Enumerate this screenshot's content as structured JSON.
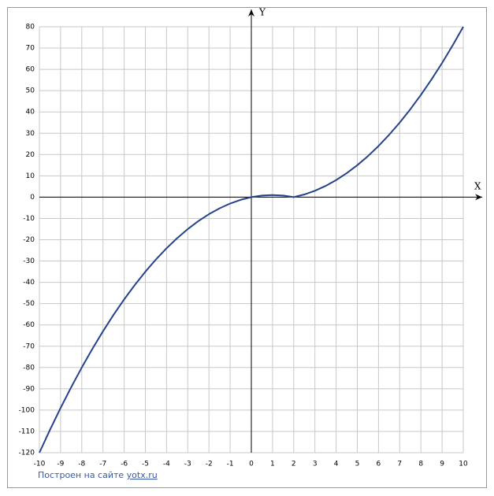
{
  "chart_data": {
    "type": "line",
    "xlabel": "X",
    "ylabel": "Y",
    "x": [
      -10,
      -9.5,
      -9,
      -8.5,
      -8,
      -7.5,
      -7,
      -6.5,
      -6,
      -5.5,
      -5,
      -4.5,
      -4,
      -3.5,
      -3,
      -2.5,
      -2,
      -1.5,
      -1,
      -0.5,
      0,
      0.5,
      1,
      1.5,
      2,
      2.5,
      3,
      3.5,
      4,
      4.5,
      5,
      5.5,
      6,
      6.5,
      7,
      7.5,
      8,
      8.5,
      9,
      9.5,
      10
    ],
    "series": [
      {
        "color": "#25438a",
        "values": [
          -120,
          -109.25,
          -99,
          -89.25,
          -80,
          -71.25,
          -63,
          -55.25,
          -48,
          -41.25,
          -35,
          -29.25,
          -24,
          -19.25,
          -15,
          -11.25,
          -8,
          -5.25,
          -3,
          -1.25,
          0,
          0.75,
          1,
          0.75,
          0,
          1.25,
          3,
          5.25,
          8,
          11.25,
          15,
          19.25,
          24,
          29.25,
          35,
          41.25,
          48,
          55.25,
          63,
          71.25,
          80
        ]
      }
    ],
    "xlim": [
      -10,
      10
    ],
    "ylim": [
      -120,
      80
    ],
    "xticks": [
      -10,
      -9,
      -8,
      -7,
      -6,
      -5,
      -4,
      -3,
      -2,
      -1,
      0,
      1,
      2,
      3,
      4,
      5,
      6,
      7,
      8,
      9,
      10
    ],
    "yticks": [
      -120,
      -110,
      -100,
      -90,
      -80,
      -70,
      -60,
      -50,
      -40,
      -30,
      -20,
      -10,
      0,
      10,
      20,
      30,
      40,
      50,
      60,
      70,
      80
    ],
    "grid": true
  },
  "footer": {
    "text": "Построен на сайте",
    "link": "yotx.ru"
  }
}
